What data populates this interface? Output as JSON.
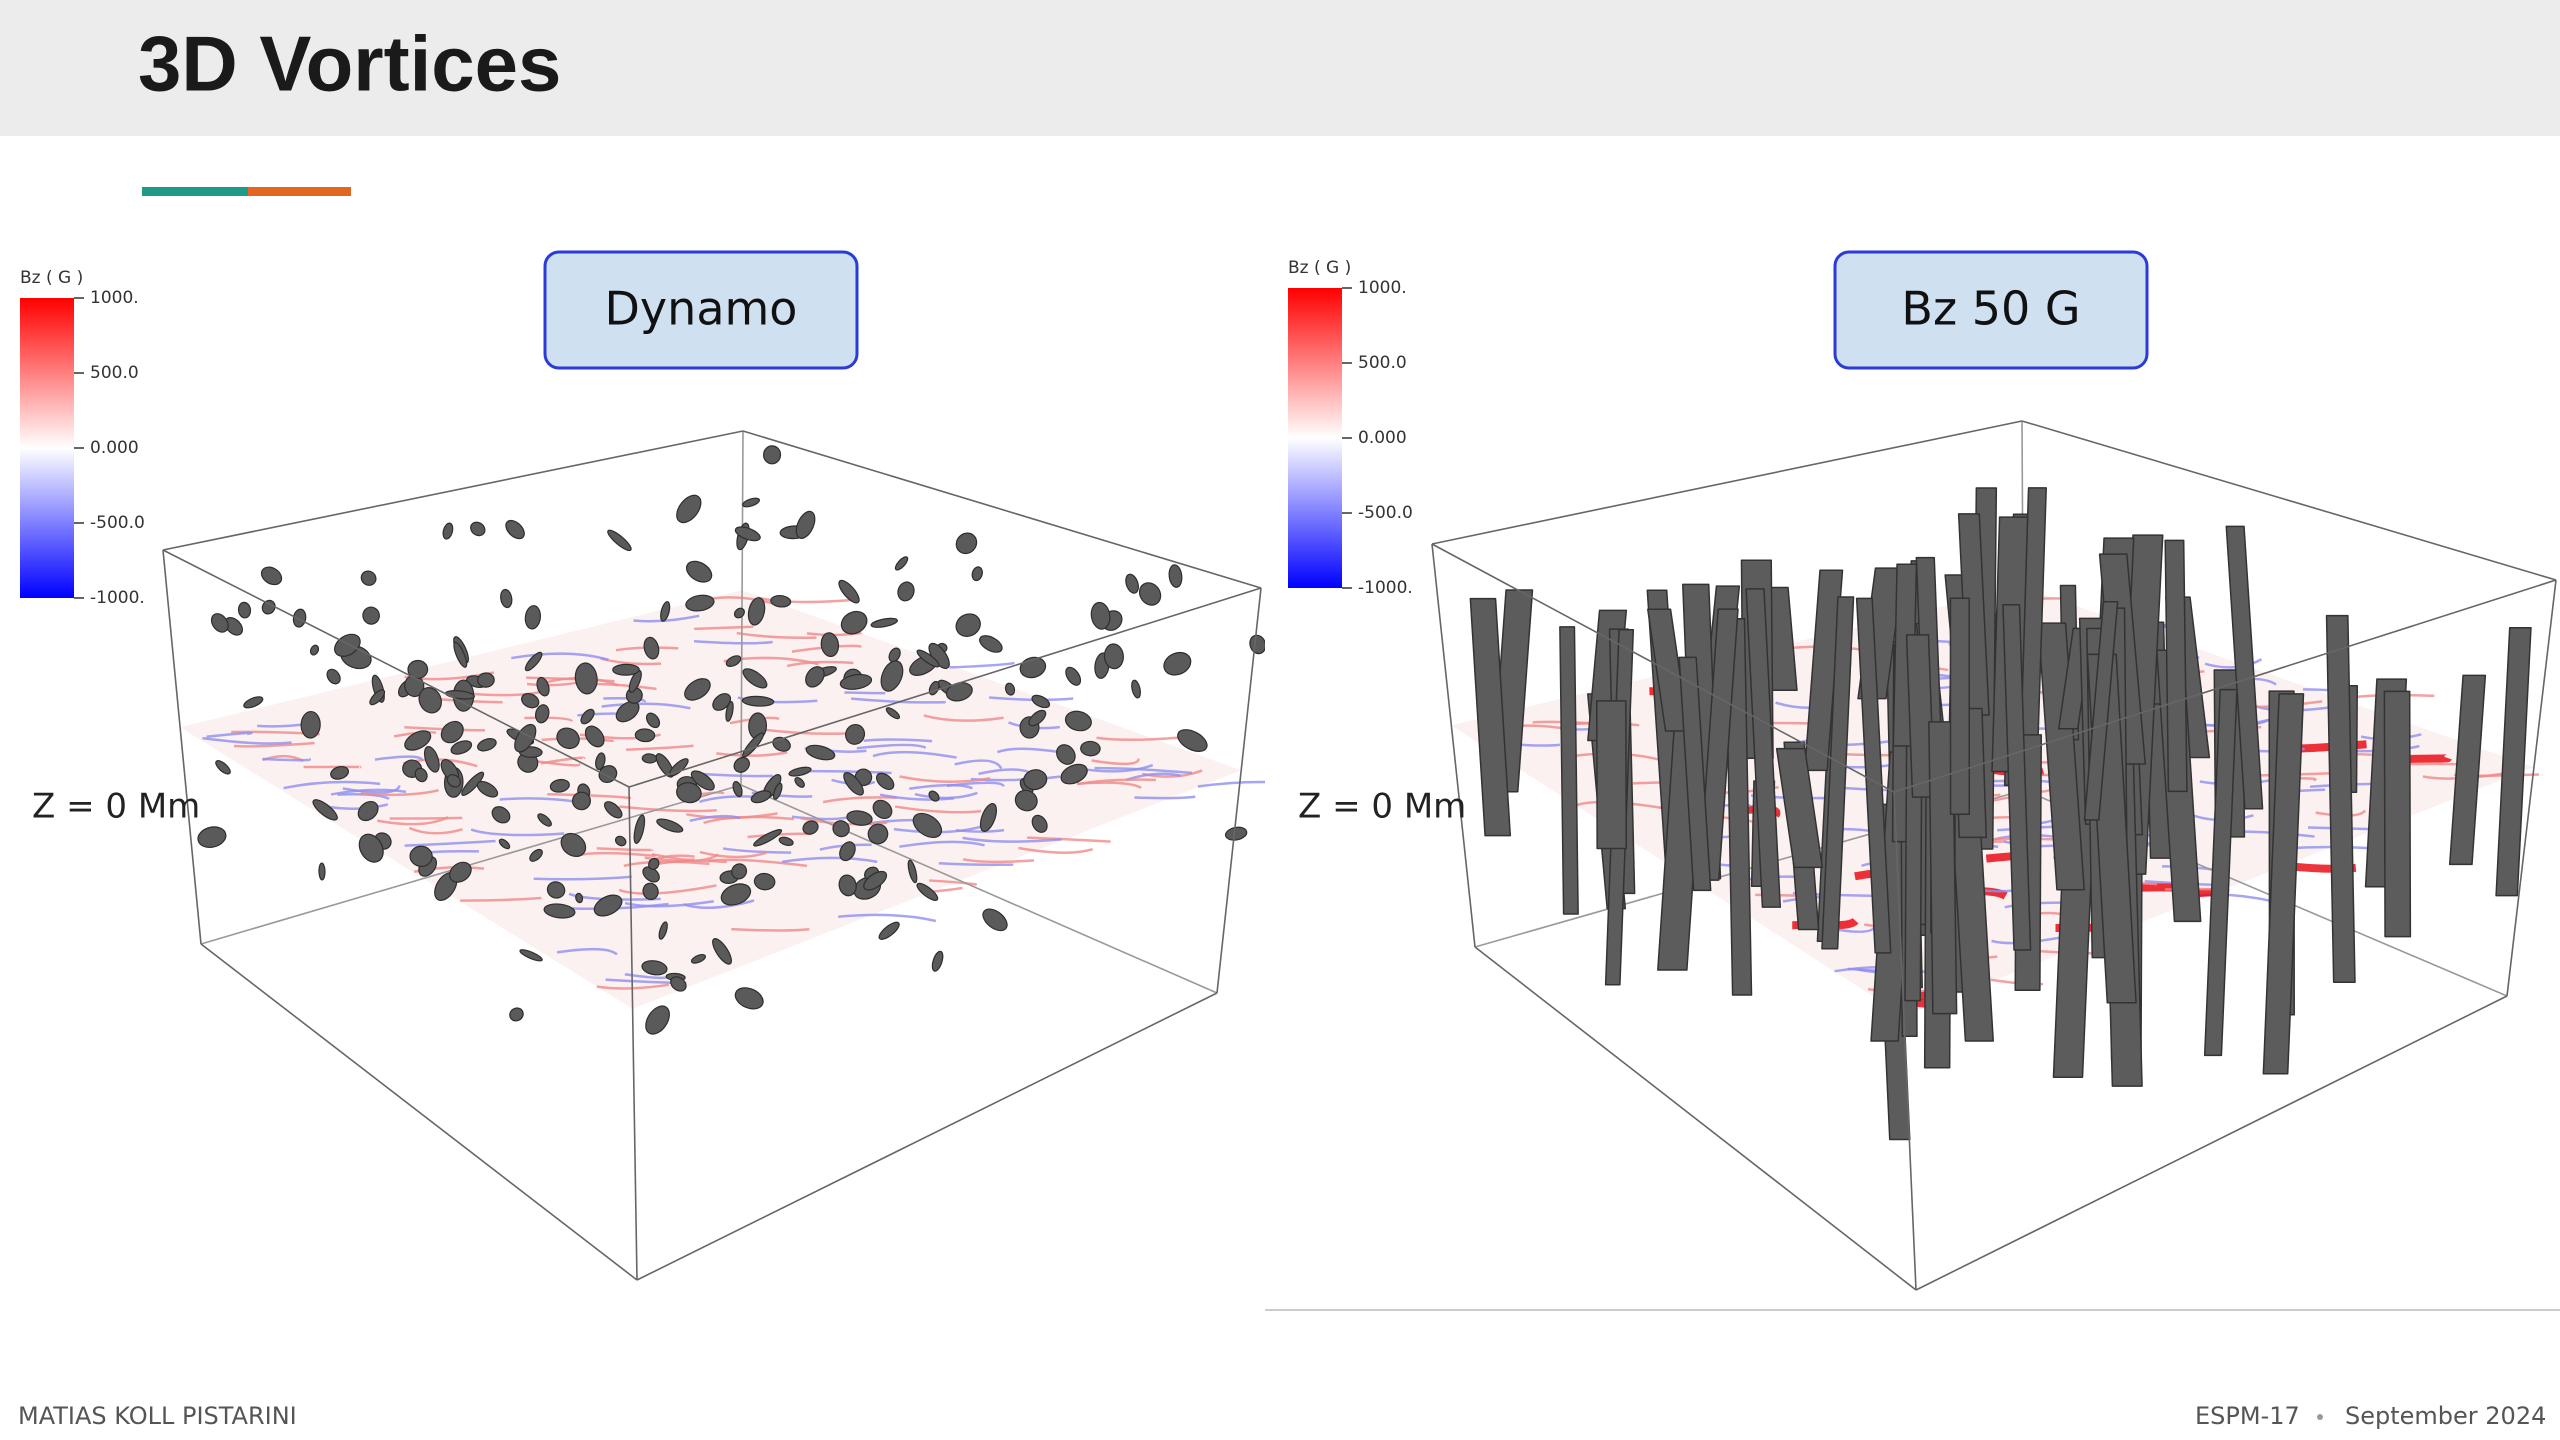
{
  "header": {
    "title": "3D Vortices"
  },
  "panels": [
    {
      "label": "Dynamo",
      "colorbar": {
        "title": "Bz ( G )",
        "ticks": [
          "1000.",
          "500.0",
          "0.000",
          "-500.0",
          "-1000."
        ]
      },
      "plane_label": "Z = 0 Mm"
    },
    {
      "label": "Bz 50 G",
      "colorbar": {
        "title": "Bz ( G )",
        "ticks": [
          "1000.",
          "500.0",
          "0.000",
          "-500.0",
          "-1000."
        ]
      },
      "plane_label": "Z = 0 Mm"
    }
  ],
  "footer": {
    "author": "MATIAS KOLL PISTARINI",
    "event": "ESPM-17",
    "date": "September 2024"
  }
}
